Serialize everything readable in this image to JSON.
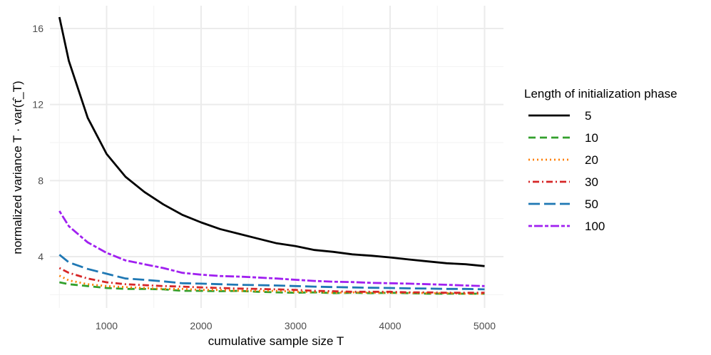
{
  "chart_data": {
    "type": "line",
    "xlabel": "cumulative sample size T",
    "ylabel": "normalized variance   T · var(τ̂_T)",
    "xlim": [
      400,
      5200
    ],
    "ylim": [
      1.3,
      17.2
    ],
    "x_ticks": [
      1000,
      2000,
      3000,
      4000,
      5000
    ],
    "y_ticks": [
      4,
      8,
      12,
      16
    ],
    "grid": true,
    "legend": {
      "title": "Length of initialization phase",
      "placement": "right"
    },
    "x": [
      500,
      600,
      800,
      1000,
      1200,
      1400,
      1600,
      1800,
      2000,
      2200,
      2400,
      2600,
      2800,
      3000,
      3200,
      3400,
      3600,
      3800,
      4000,
      4200,
      4400,
      4600,
      4800,
      5000
    ],
    "series": [
      {
        "name": "5",
        "color": "#000000",
        "dash": "solid",
        "values": [
          16.6,
          14.3,
          11.3,
          9.4,
          8.2,
          7.4,
          6.75,
          6.2,
          5.8,
          5.45,
          5.2,
          4.95,
          4.7,
          4.55,
          4.35,
          4.25,
          4.12,
          4.05,
          3.96,
          3.85,
          3.75,
          3.65,
          3.6,
          3.5
        ]
      },
      {
        "name": "10",
        "color": "#33a02c",
        "dash": "dashed",
        "values": [
          2.65,
          2.55,
          2.45,
          2.35,
          2.3,
          2.3,
          2.28,
          2.2,
          2.2,
          2.18,
          2.2,
          2.15,
          2.12,
          2.1,
          2.12,
          2.08,
          2.1,
          2.08,
          2.1,
          2.08,
          2.05,
          2.05,
          2.05,
          2.05
        ]
      },
      {
        "name": "20",
        "color": "#ff7f00",
        "dash": "dotted",
        "values": [
          3.0,
          2.75,
          2.55,
          2.45,
          2.4,
          2.35,
          2.3,
          2.3,
          2.25,
          2.25,
          2.2,
          2.2,
          2.2,
          2.15,
          2.15,
          2.1,
          2.12,
          2.1,
          2.1,
          2.1,
          2.08,
          2.08,
          2.05,
          2.05
        ]
      },
      {
        "name": "30",
        "color": "#d62728",
        "dash": "dotdash",
        "values": [
          3.4,
          3.15,
          2.85,
          2.65,
          2.55,
          2.5,
          2.45,
          2.42,
          2.38,
          2.35,
          2.32,
          2.3,
          2.28,
          2.25,
          2.2,
          2.18,
          2.15,
          2.15,
          2.15,
          2.12,
          2.12,
          2.1,
          2.1,
          2.1
        ]
      },
      {
        "name": "50",
        "color": "#1f78b4",
        "dash": "longdash",
        "values": [
          4.1,
          3.7,
          3.35,
          3.1,
          2.85,
          2.78,
          2.7,
          2.6,
          2.58,
          2.55,
          2.52,
          2.5,
          2.48,
          2.45,
          2.42,
          2.4,
          2.38,
          2.36,
          2.35,
          2.33,
          2.32,
          2.3,
          2.3,
          2.28
        ]
      },
      {
        "name": "100",
        "color": "#a020f0",
        "dash": "twodash",
        "values": [
          6.4,
          5.6,
          4.75,
          4.2,
          3.8,
          3.6,
          3.4,
          3.15,
          3.05,
          2.98,
          2.95,
          2.9,
          2.85,
          2.78,
          2.72,
          2.68,
          2.66,
          2.62,
          2.6,
          2.58,
          2.55,
          2.52,
          2.48,
          2.45
        ]
      }
    ]
  }
}
